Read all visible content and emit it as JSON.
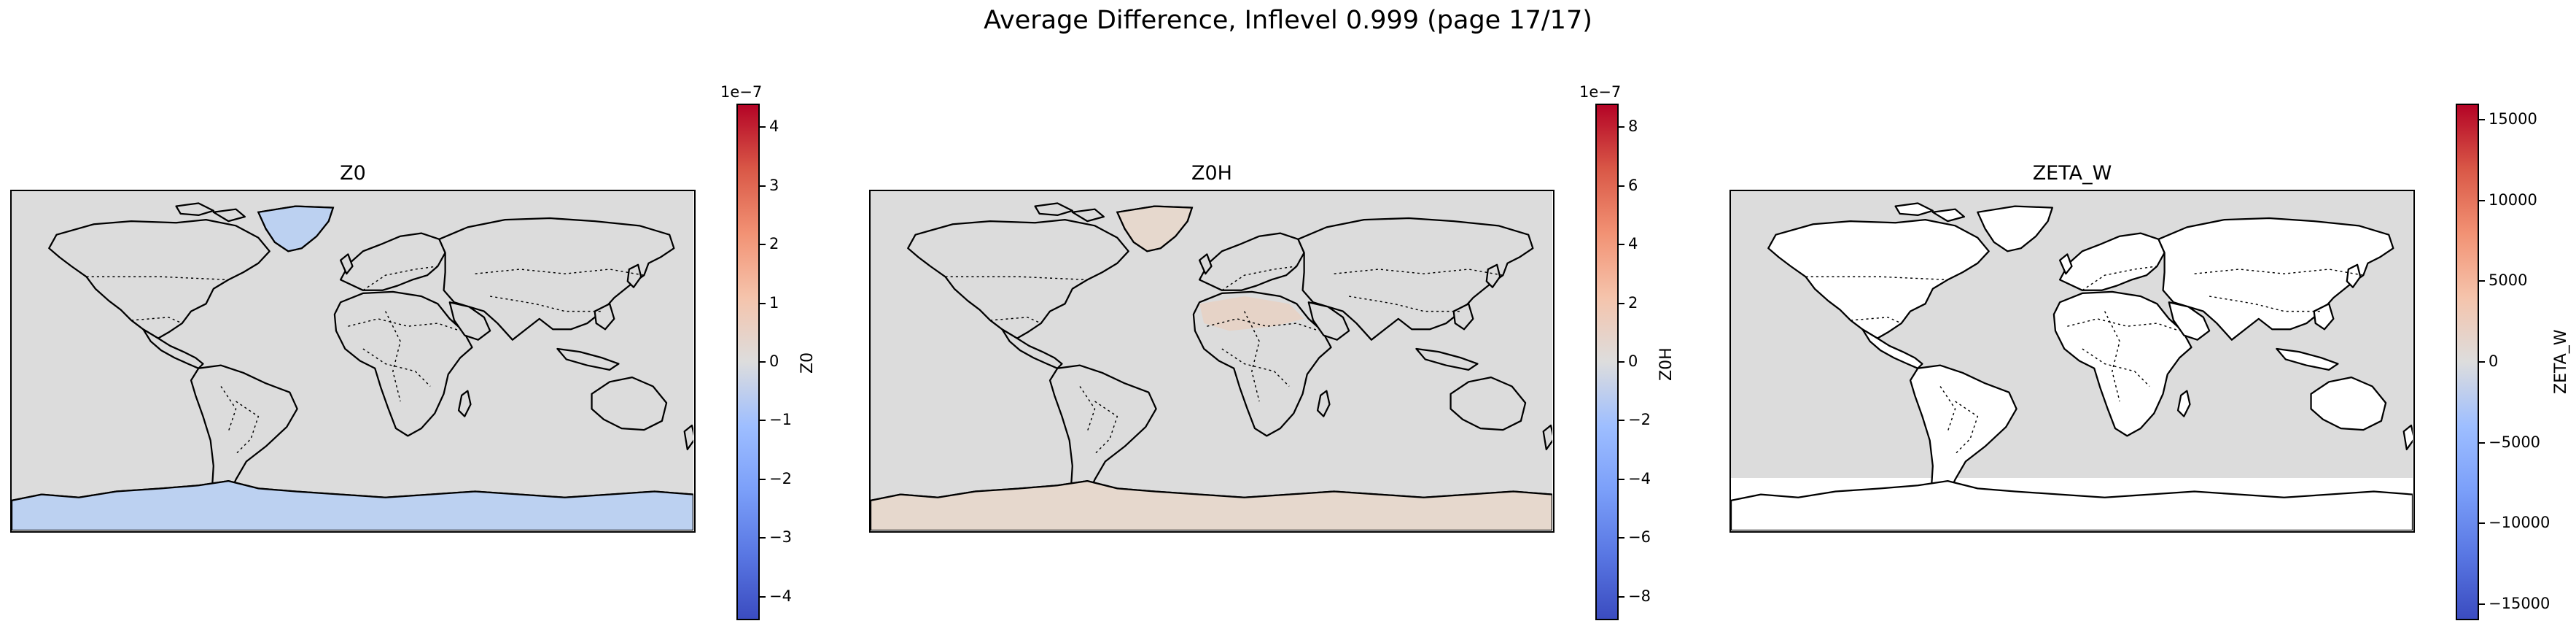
{
  "figure": {
    "suptitle": "Average Difference, Inflevel 0.999 (page 17/17)"
  },
  "colormap": {
    "name": "coolwarm",
    "low": "#3b4cc0",
    "mid": "#dddddd",
    "high": "#b40426"
  },
  "land_color": "#ffffff",
  "chart_data": [
    {
      "type": "heatmap",
      "title": "Z0",
      "colorbar_label": "Z0",
      "colorbar_exponent": "1e−7",
      "vlim": [
        -4.4e-07,
        4.4e-07
      ],
      "ticks": [
        {
          "value": 4,
          "label": "4"
        },
        {
          "value": 3,
          "label": "3"
        },
        {
          "value": 2,
          "label": "2"
        },
        {
          "value": 1,
          "label": "1"
        },
        {
          "value": 0,
          "label": "0"
        },
        {
          "value": -1,
          "label": "−1"
        },
        {
          "value": -2,
          "label": "−2"
        },
        {
          "value": -3,
          "label": "−3"
        },
        {
          "value": -4,
          "label": "−4"
        }
      ],
      "ocean_color": "#dcdcdc",
      "regions": [
        {
          "name": "Greenland",
          "value": -1.2e-07,
          "color": "#bcd1f1"
        },
        {
          "name": "Antarctica",
          "value": -1.2e-07,
          "color": "#bcd1f1"
        }
      ]
    },
    {
      "type": "heatmap",
      "title": "Z0H",
      "colorbar_label": "Z0H",
      "colorbar_exponent": "1e−7",
      "vlim": [
        -8.8e-07,
        8.8e-07
      ],
      "ticks": [
        {
          "value": 8,
          "label": "8"
        },
        {
          "value": 6,
          "label": "6"
        },
        {
          "value": 4,
          "label": "4"
        },
        {
          "value": 2,
          "label": "2"
        },
        {
          "value": 0,
          "label": "0"
        },
        {
          "value": -2,
          "label": "−2"
        },
        {
          "value": -4,
          "label": "−4"
        },
        {
          "value": -6,
          "label": "−6"
        },
        {
          "value": -8,
          "label": "−8"
        }
      ],
      "ocean_color": "#dcdcdc",
      "regions": [
        {
          "name": "Greenland",
          "value": 5e-08,
          "color": "#e6d8cd"
        },
        {
          "name": "Antarctica",
          "value": 5e-08,
          "color": "#e6d8cd"
        },
        {
          "name": "Sahara",
          "value": 1e-07,
          "color": "#e9d1c2"
        }
      ]
    },
    {
      "type": "heatmap",
      "title": "ZETA_W",
      "colorbar_label": "ZETA_W",
      "colorbar_exponent": "",
      "vlim": [
        -16000,
        16000
      ],
      "ticks": [
        {
          "value": 15000,
          "label": "15000"
        },
        {
          "value": 10000,
          "label": "10000"
        },
        {
          "value": 5000,
          "label": "5000"
        },
        {
          "value": 0,
          "label": "0"
        },
        {
          "value": -5000,
          "label": "−5000"
        },
        {
          "value": -10000,
          "label": "−10000"
        },
        {
          "value": -15000,
          "label": "−15000"
        }
      ],
      "ocean_color": "#dcdcdc",
      "regions": []
    }
  ]
}
